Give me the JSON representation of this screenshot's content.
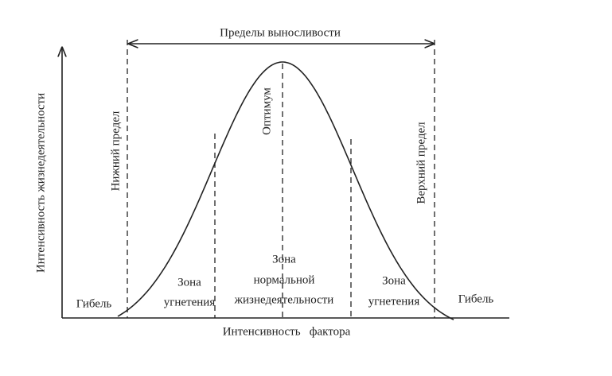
{
  "header": {
    "title": "Пределы выносливости"
  },
  "axes": {
    "y_label": "Интенсивность жизнедеятельности",
    "x_label": "Интенсивность   фактора"
  },
  "limits": {
    "lower": "Нижний предел",
    "upper": "Верхний предел",
    "optimum": "Оптимум"
  },
  "death": {
    "left": "Гибель",
    "right": "Гибель"
  },
  "zones": [
    {
      "lines": [
        "Зона",
        "угнетения"
      ]
    },
    {
      "lines": [
        "Зона",
        "нормальной",
        "жизнедеятельности"
      ]
    },
    {
      "lines": [
        "Зона",
        "угнетения"
      ]
    }
  ]
}
